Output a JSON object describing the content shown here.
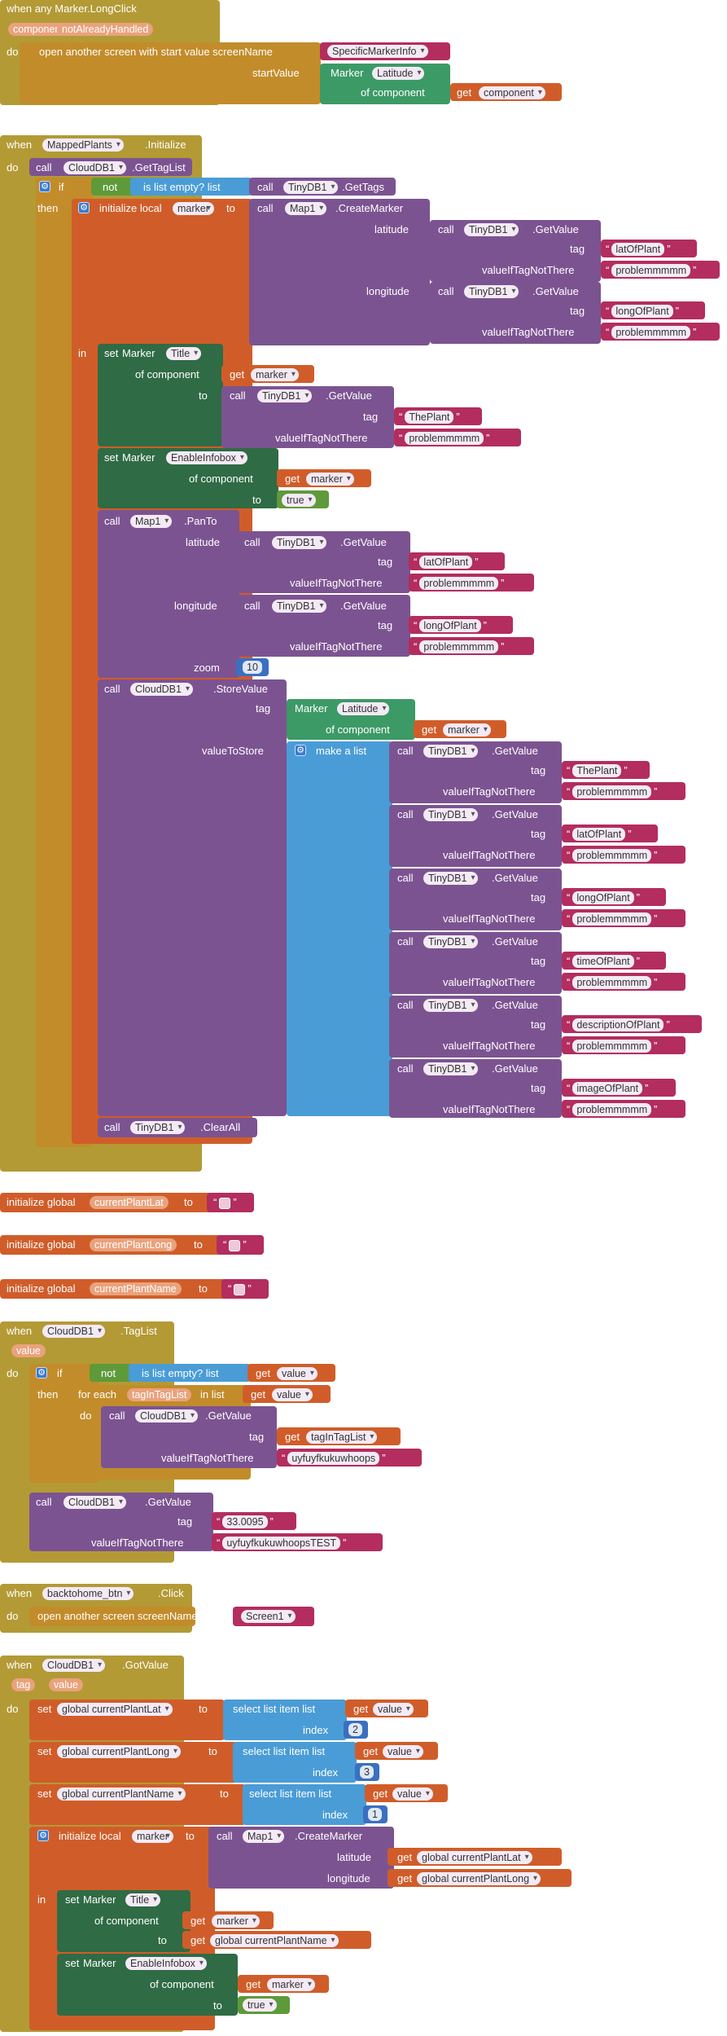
{
  "b1": {
    "when": "when any Marker.LongClick",
    "param1": "component",
    "param2": "notAlreadyHandled",
    "do": "do",
    "open_label": "open another screen with start value  screenName",
    "screen_name": "SpecificMarkerInfo",
    "start_value": "startValue",
    "marker": "Marker",
    "latitude": "Latitude",
    "of_component": "of component",
    "get": "get",
    "component": "component"
  },
  "b2": {
    "when": "when",
    "comp": "MappedPlants",
    "event": ".Initialize",
    "do": "do",
    "call": "call",
    "clouddb": "CloudDB1",
    "gettaglist": ".GetTagList",
    "if": "if",
    "not": "not",
    "is_list_empty": "is list empty?  list",
    "tinydb": "TinyDB1",
    "gettags": ".GetTags",
    "then": "then",
    "initialize_local": "initialize local",
    "marker": "marker",
    "to": "to",
    "map": "Map1",
    "createmarker": ".CreateMarker",
    "latitude": "latitude",
    "longitude": "longitude",
    "getvalue": ".GetValue",
    "tag": "tag",
    "value_if_not": "valueIfTagNotThere",
    "latOfPlant": "latOfPlant",
    "longOfPlant": "longOfPlant",
    "problem": "problemmmmm",
    "in": "in",
    "set": "set",
    "marker_comp": "Marker",
    "title": "Title",
    "of_component": "of component",
    "get": "get",
    "thePlant": "ThePlant",
    "enable_infobox": "EnableInfobox",
    "true": "true",
    "panto": ".PanTo",
    "zoom": "zoom",
    "zoom_value": "10",
    "storevalue": ".StoreValue",
    "latitude_prop": "Latitude",
    "value_to_store": "valueToStore",
    "make_a_list": "make a list",
    "timeOfPlant": "timeOfPlant",
    "descriptionOfPlant": "descriptionOfPlant",
    "imageOfPlant": "imageOfPlant",
    "clearall": ".ClearAll"
  },
  "globals": {
    "init_global": "initialize global",
    "to": "to",
    "lat": "currentPlantLat",
    "long": "currentPlantLong",
    "name": "currentPlantName"
  },
  "b3": {
    "when": "when",
    "comp": "CloudDB1",
    "event": ".TagList",
    "param": "value",
    "do": "do",
    "if": "if",
    "not": "not",
    "is_list_empty": "is list empty?  list",
    "get": "get",
    "value": "value",
    "then": "then",
    "for_each": "for each",
    "item_var": "tagInTagList",
    "in_list": "in list",
    "do2": "do",
    "call": "call",
    "clouddb": "CloudDB1",
    "getvalue": ".GetValue",
    "tag": "tag",
    "value_if_not": "valueIfTagNotThere",
    "default1": "uyfuyfkukuwhoops",
    "tag2": "33.0095",
    "default2": "uyfuyfkukuwhoopsTEST"
  },
  "b4": {
    "when": "when",
    "comp": "backtohome_btn",
    "event": ".Click",
    "do": "do",
    "open": "open another screen  screenName",
    "screen": "Screen1"
  },
  "b5": {
    "when": "when",
    "comp": "CloudDB1",
    "event": ".GotValue",
    "param1": "tag",
    "param2": "value",
    "do": "do",
    "set": "set",
    "g_lat": "global currentPlantLat",
    "g_long": "global currentPlantLong",
    "g_name": "global currentPlantName",
    "to": "to",
    "select": "select list item  list",
    "get": "get",
    "value": "value",
    "index": "index",
    "i2": "2",
    "i3": "3",
    "i1": "1",
    "initialize_local": "initialize local",
    "marker": "marker",
    "call": "call",
    "map": "Map1",
    "createmarker": ".CreateMarker",
    "latitude": "latitude",
    "longitude": "longitude",
    "in": "in",
    "marker_comp": "Marker",
    "title": "Title",
    "of_component": "of component",
    "enable_infobox": "EnableInfobox",
    "true": "true"
  }
}
